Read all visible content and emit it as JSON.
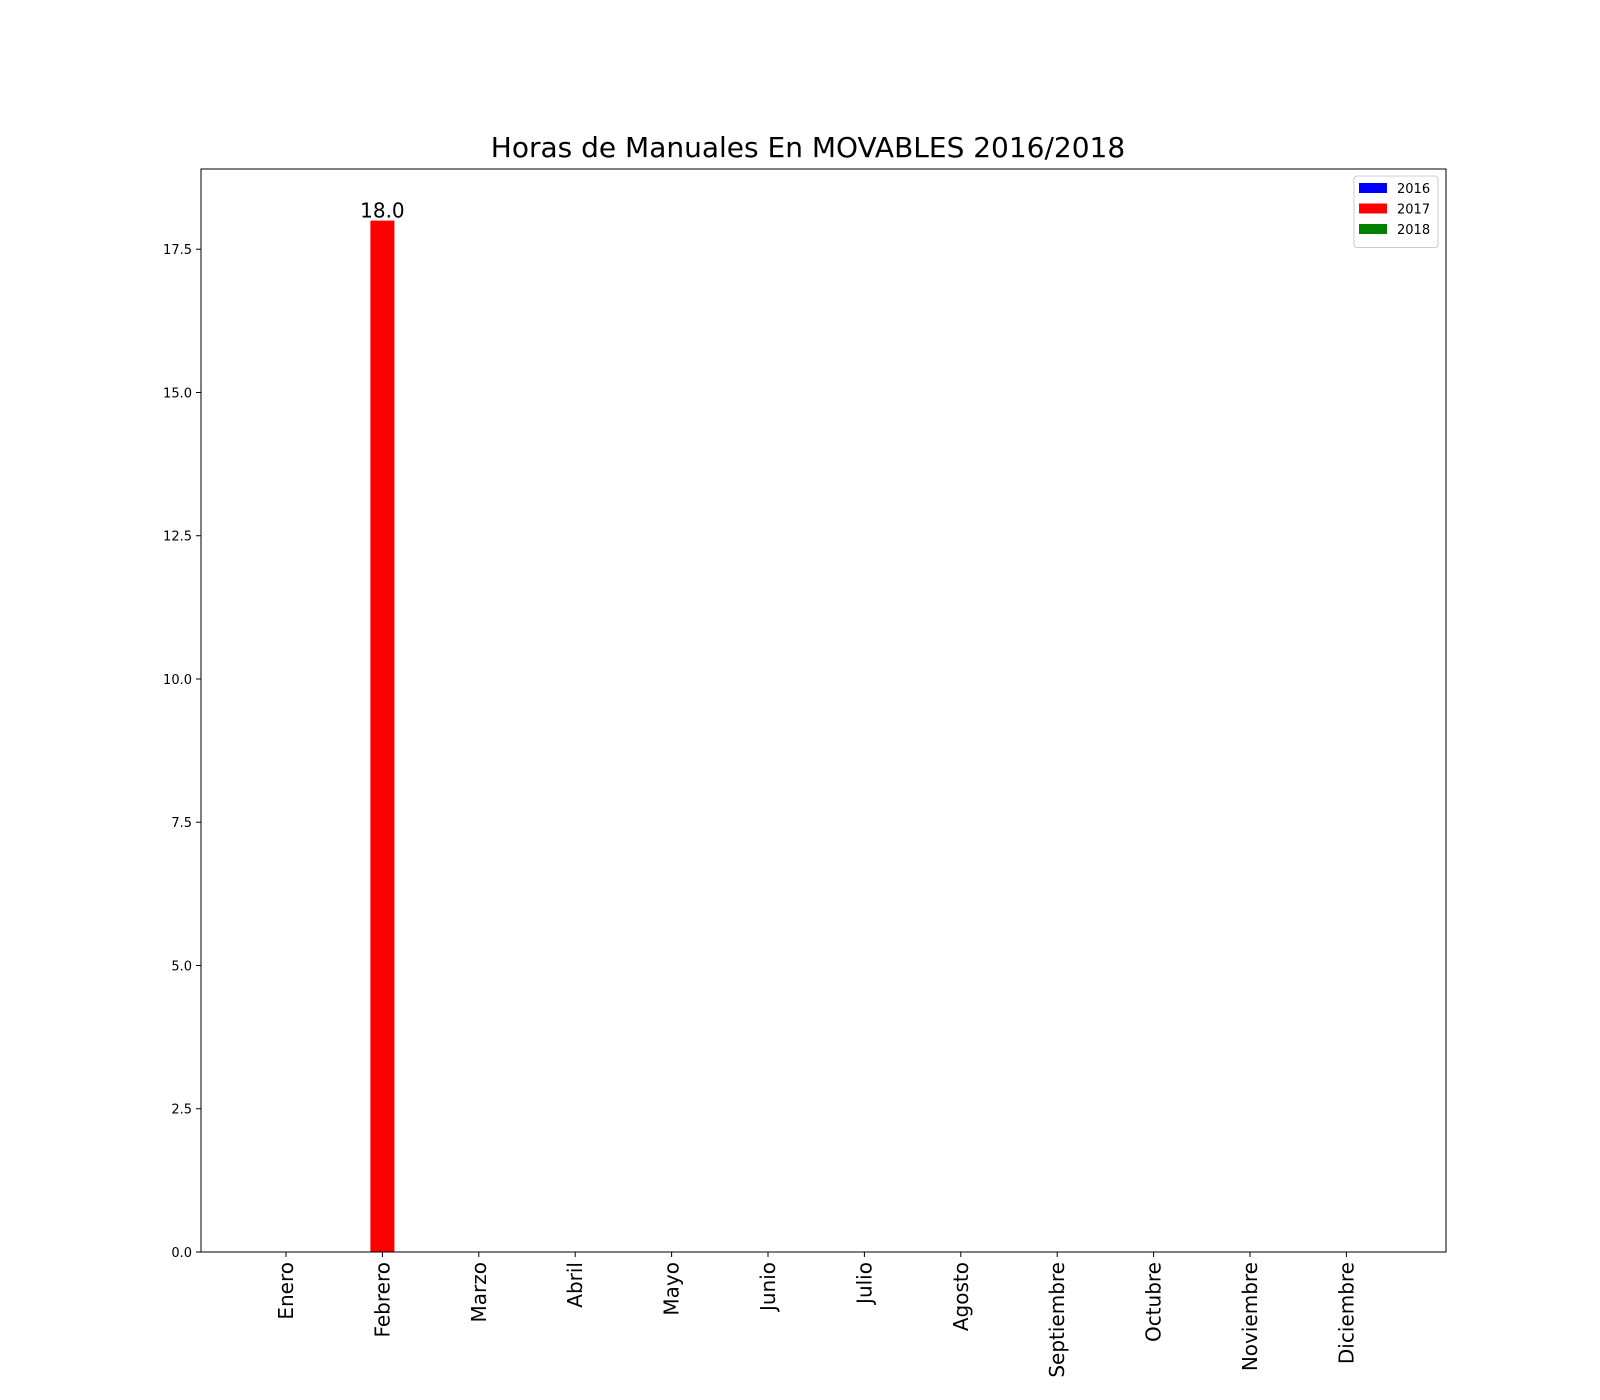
{
  "chart_data": {
    "type": "bar",
    "title": "Horas de Manuales En MOVABLES 2016/2018",
    "xlabel": "",
    "ylabel": "",
    "categories": [
      "Enero",
      "Febrero",
      "Marzo",
      "Abril",
      "Mayo",
      "Junio",
      "Julio",
      "Agosto",
      "Septiembre",
      "Octubre",
      "Noviembre",
      "Diciembre"
    ],
    "series": [
      {
        "name": "2016",
        "color": "#0000ff",
        "values": [
          0,
          0,
          0,
          0,
          0,
          0,
          0,
          0,
          0,
          0,
          0,
          0
        ]
      },
      {
        "name": "2017",
        "color": "#ff0000",
        "values": [
          0,
          18.0,
          0,
          0,
          0,
          0,
          0,
          0,
          0,
          0,
          0,
          0
        ]
      },
      {
        "name": "2018",
        "color": "#008000",
        "values": [
          0,
          0,
          0,
          0,
          0,
          0,
          0,
          0,
          0,
          0,
          0,
          0
        ]
      }
    ],
    "data_labels": [
      {
        "series": "2017",
        "category": "Febrero",
        "text": "18.0"
      }
    ],
    "yticks": [
      "0.0",
      "2.5",
      "5.0",
      "7.5",
      "10.0",
      "12.5",
      "15.0",
      "17.5"
    ],
    "ylim": [
      0,
      18.9
    ],
    "grid": false,
    "legend_position": "top-right"
  }
}
